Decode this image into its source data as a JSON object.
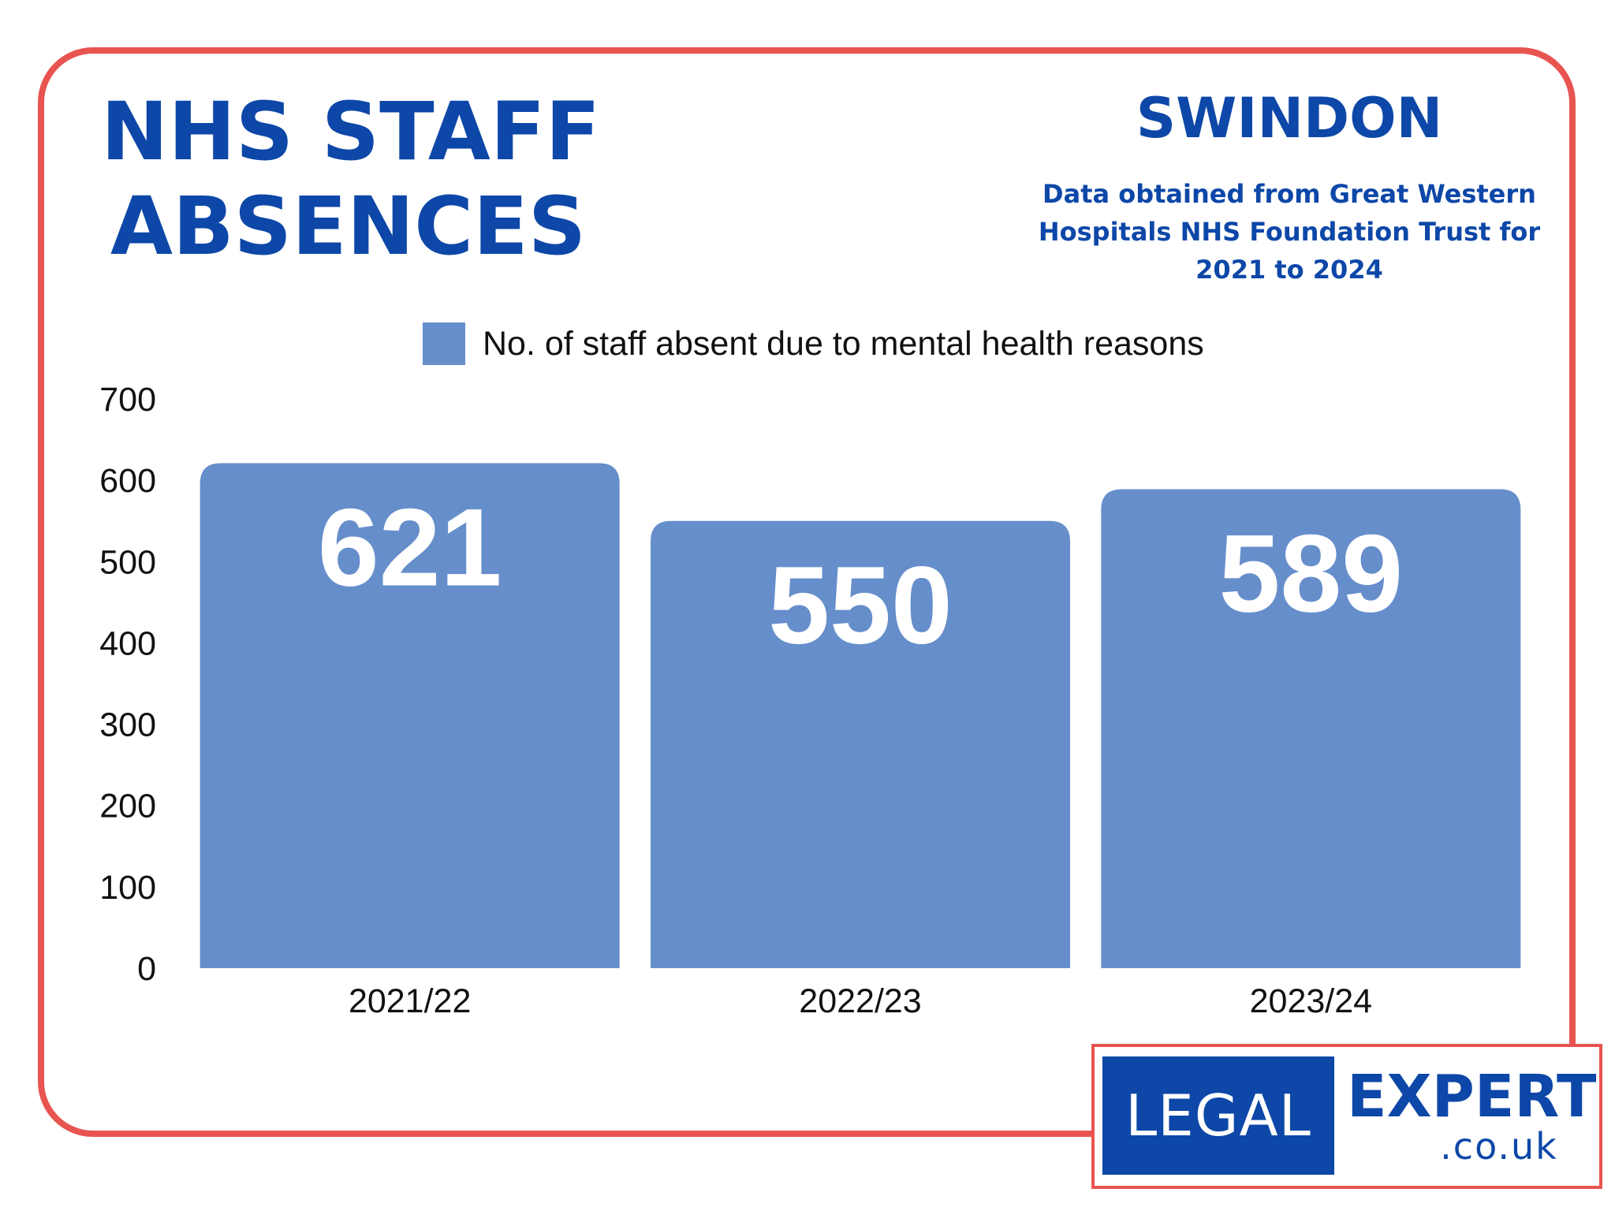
{
  "header": {
    "title_line1": "NHS STAFF",
    "title_line2": "ABSENCES",
    "region": "SWINDON",
    "source_line1": "Data obtained from Great Western",
    "source_line2": "Hospitals NHS Foundation Trust for",
    "source_line3": "2021 to 2024"
  },
  "colors": {
    "title": "#0d47a8",
    "bar": "#668ecb",
    "frame": "#e85450",
    "data_label": "#ffffff"
  },
  "chart_data": {
    "type": "bar",
    "categories": [
      "2021/22",
      "2022/23",
      "2023/24"
    ],
    "series": [
      {
        "name": "No. of staff absent due to mental health reasons",
        "values": [
          621,
          550,
          589
        ]
      }
    ],
    "data_labels": [
      "621",
      "550",
      "589"
    ],
    "ylim": [
      0,
      700
    ],
    "yticks": [
      0,
      100,
      200,
      300,
      400,
      500,
      600,
      700
    ],
    "grid": false,
    "legend_position": "top-center"
  },
  "logo": {
    "left_text": "LEGAL",
    "right_text": "EXPERT",
    "domain_text": ".co.uk"
  }
}
